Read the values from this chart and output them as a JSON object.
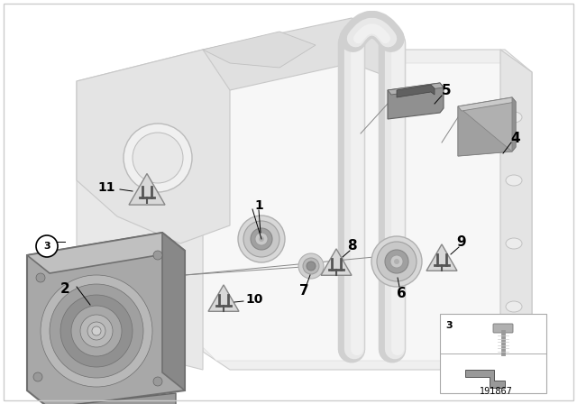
{
  "bg_color": "#ffffff",
  "border_color": "#cccccc",
  "part_number": "191867",
  "label_fontsize": 9,
  "frame_color": "#e0e0e0",
  "frame_edge": "#c8c8c8",
  "dark_gray": "#888888",
  "mid_gray": "#aaaaaa",
  "light_gray": "#d8d8d8",
  "woofer_dark": "#909090",
  "woofer_mid": "#b0b0b0",
  "woofer_light": "#c8c8c8"
}
